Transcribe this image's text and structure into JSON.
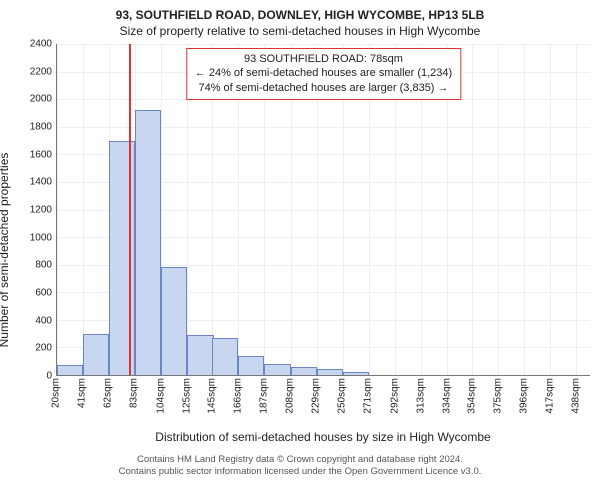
{
  "title_line1": "93, SOUTHFIELD ROAD, DOWNLEY, HIGH WYCOMBE, HP13 5LB",
  "title_line2": "Size of property relative to semi-detached houses in High Wycombe",
  "y_axis": {
    "label": "Number of semi-detached properties",
    "min": 0,
    "max": 2400,
    "tick_step": 200,
    "ticks": [
      0,
      200,
      400,
      600,
      800,
      1000,
      1200,
      1400,
      1600,
      1800,
      2000,
      2200,
      2400
    ]
  },
  "x_axis": {
    "label": "Distribution of semi-detached houses by size in High Wycombe",
    "min": 20,
    "max": 449,
    "tick_step": 21,
    "ticks": [
      20,
      41,
      62,
      83,
      104,
      125,
      145,
      166,
      187,
      208,
      229,
      250,
      271,
      292,
      313,
      334,
      354,
      375,
      396,
      417,
      438
    ],
    "tick_unit": "sqm"
  },
  "histogram": {
    "type": "bar",
    "bar_fill": "#c9d6ef",
    "bar_stroke": "#6b86c6",
    "bin_width_sqm": 21,
    "bins": [
      {
        "start": 20,
        "count": 70
      },
      {
        "start": 41,
        "count": 300
      },
      {
        "start": 62,
        "count": 1700
      },
      {
        "start": 83,
        "count": 1920
      },
      {
        "start": 104,
        "count": 780
      },
      {
        "start": 125,
        "count": 290
      },
      {
        "start": 145,
        "count": 270
      },
      {
        "start": 166,
        "count": 140
      },
      {
        "start": 187,
        "count": 80
      },
      {
        "start": 208,
        "count": 55
      },
      {
        "start": 229,
        "count": 40
      },
      {
        "start": 250,
        "count": 20
      }
    ]
  },
  "marker": {
    "value_sqm": 78,
    "color": "#e03030"
  },
  "callout": {
    "line1": "93 SOUTHFIELD ROAD: 78sqm",
    "line2": "← 24% of semi-detached houses are smaller (1,234)",
    "line3": "74% of semi-detached houses are larger (3,835) →",
    "border_color": "#e03030",
    "text_color": "#222222"
  },
  "grid_color": "#eeeeee",
  "axis_color": "#777777",
  "background_color": "#ffffff",
  "footer_line1": "Contains HM Land Registry data © Crown copyright and database right 2024.",
  "footer_line2": "Contains public sector information licensed under the Open Government Licence v3.0."
}
